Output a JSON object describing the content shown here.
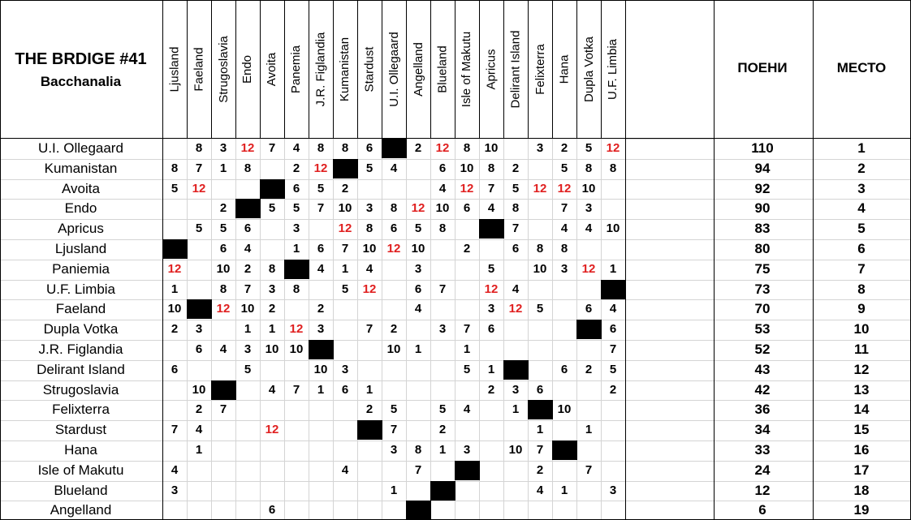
{
  "title": "THE BRDIGE #41",
  "subtitle": "Bacchanalia",
  "headers": {
    "points": "ПОЕНИ",
    "place": "МЕСТО"
  },
  "voters": [
    "Ljusland",
    "Faeland",
    "Strugoslavia",
    "Endo",
    "Avoita",
    "Panemia",
    "J.R. Figlandia",
    "Kumanistan",
    "Stardust",
    "U.I. Ollegaard",
    "Angelland",
    "Blueland",
    "Isle of Makutu",
    "Apricus",
    "Delirant Island",
    "Felixterra",
    "Hana",
    "Dupla Votka",
    "U.F. Limbia"
  ],
  "highlight_color": "#e02020",
  "rows": [
    {
      "name": "U.I. Ollegaard",
      "total": "110",
      "place": "1",
      "scores": [
        "",
        "8",
        "3",
        "12",
        "7",
        "4",
        "8",
        "8",
        "6",
        "X",
        "2",
        "12",
        "8",
        "10",
        "",
        "3",
        "2",
        "5",
        "12"
      ]
    },
    {
      "name": "Kumanistan",
      "total": "94",
      "place": "2",
      "scores": [
        "8",
        "7",
        "1",
        "8",
        "",
        "2",
        "12",
        "X",
        "5",
        "4",
        "",
        "6",
        "10",
        "8",
        "2",
        "",
        "5",
        "8",
        "8"
      ]
    },
    {
      "name": "Avoita",
      "total": "92",
      "place": "3",
      "scores": [
        "5",
        "12",
        "",
        "",
        "X",
        "6",
        "5",
        "2",
        "",
        "",
        "",
        "4",
        "12",
        "7",
        "5",
        "12",
        "12",
        "10",
        ""
      ]
    },
    {
      "name": "Endo",
      "total": "90",
      "place": "4",
      "scores": [
        "",
        "",
        "2",
        "X",
        "5",
        "5",
        "7",
        "10",
        "3",
        "8",
        "12",
        "10",
        "6",
        "4",
        "8",
        "",
        "7",
        "3",
        ""
      ]
    },
    {
      "name": "Apricus",
      "total": "83",
      "place": "5",
      "scores": [
        "",
        "5",
        "5",
        "6",
        "",
        "3",
        "",
        "12",
        "8",
        "6",
        "5",
        "8",
        "",
        "X",
        "7",
        "",
        "4",
        "4",
        "10"
      ]
    },
    {
      "name": "Ljusland",
      "total": "80",
      "place": "6",
      "scores": [
        "X",
        "",
        "6",
        "4",
        "",
        "1",
        "6",
        "7",
        "10",
        "12",
        "10",
        "",
        "2",
        "",
        "6",
        "8",
        "8",
        "",
        ""
      ]
    },
    {
      "name": "Paniemia",
      "total": "75",
      "place": "7",
      "scores": [
        "12",
        "",
        "10",
        "2",
        "8",
        "X",
        "4",
        "1",
        "4",
        "",
        "3",
        "",
        "",
        "5",
        "",
        "10",
        "3",
        "12",
        "1"
      ]
    },
    {
      "name": "U.F. Limbia",
      "total": "73",
      "place": "8",
      "scores": [
        "1",
        "",
        "8",
        "7",
        "3",
        "8",
        "",
        "5",
        "12",
        "",
        "6",
        "7",
        "",
        "12",
        "4",
        "",
        "",
        "",
        "X"
      ]
    },
    {
      "name": "Faeland",
      "total": "70",
      "place": "9",
      "scores": [
        "10",
        "X",
        "12",
        "10",
        "2",
        "",
        "2",
        "",
        "",
        "",
        "4",
        "",
        "",
        "3",
        "12",
        "5",
        "",
        "6",
        "4"
      ]
    },
    {
      "name": "Dupla Votka",
      "total": "53",
      "place": "10",
      "scores": [
        "2",
        "3",
        "",
        "1",
        "1",
        "12",
        "3",
        "",
        "7",
        "2",
        "",
        "3",
        "7",
        "6",
        "",
        "",
        "",
        "X",
        "6"
      ]
    },
    {
      "name": "J.R. Figlandia",
      "total": "52",
      "place": "11",
      "scores": [
        "",
        "6",
        "4",
        "3",
        "10",
        "10",
        "X",
        "",
        "",
        "10",
        "1",
        "",
        "1",
        "",
        "",
        "",
        "",
        "",
        "7"
      ]
    },
    {
      "name": "Delirant Island",
      "total": "43",
      "place": "12",
      "scores": [
        "6",
        "",
        "",
        "5",
        "",
        "",
        "10",
        "3",
        "",
        "",
        "",
        "",
        "5",
        "1",
        "X",
        "",
        "6",
        "2",
        "5"
      ]
    },
    {
      "name": "Strugoslavia",
      "total": "42",
      "place": "13",
      "scores": [
        "",
        "10",
        "X",
        "",
        "4",
        "7",
        "1",
        "6",
        "1",
        "",
        "",
        "",
        "",
        "2",
        "3",
        "6",
        "",
        "",
        "2"
      ]
    },
    {
      "name": "Felixterra",
      "total": "36",
      "place": "14",
      "scores": [
        "",
        "2",
        "7",
        "",
        "",
        "",
        "",
        "",
        "2",
        "5",
        "",
        "5",
        "4",
        "",
        "1",
        "X",
        "10",
        "",
        ""
      ]
    },
    {
      "name": "Stardust",
      "total": "34",
      "place": "15",
      "scores": [
        "7",
        "4",
        "",
        "",
        "12",
        "",
        "",
        "",
        "X",
        "7",
        "",
        "2",
        "",
        "",
        "",
        "1",
        "",
        "1",
        ""
      ]
    },
    {
      "name": "Hana",
      "total": "33",
      "place": "16",
      "scores": [
        "",
        "1",
        "",
        "",
        "",
        "",
        "",
        "",
        "",
        "3",
        "8",
        "1",
        "3",
        "",
        "10",
        "7",
        "X",
        "",
        ""
      ]
    },
    {
      "name": "Isle of Makutu",
      "total": "24",
      "place": "17",
      "scores": [
        "4",
        "",
        "",
        "",
        "",
        "",
        "",
        "4",
        "",
        "",
        "7",
        "",
        "X",
        "",
        "",
        "2",
        "",
        "7",
        ""
      ]
    },
    {
      "name": "Blueland",
      "total": "12",
      "place": "18",
      "scores": [
        "3",
        "",
        "",
        "",
        "",
        "",
        "",
        "",
        "",
        "1",
        "",
        "X",
        "",
        "",
        "",
        "4",
        "1",
        "",
        "3"
      ]
    },
    {
      "name": "Angelland",
      "total": "6",
      "place": "19",
      "scores": [
        "",
        "",
        "",
        "",
        "6",
        "",
        "",
        "",
        "",
        "",
        "X",
        "",
        "",
        "",
        "",
        "",
        "",
        "",
        ""
      ]
    }
  ]
}
